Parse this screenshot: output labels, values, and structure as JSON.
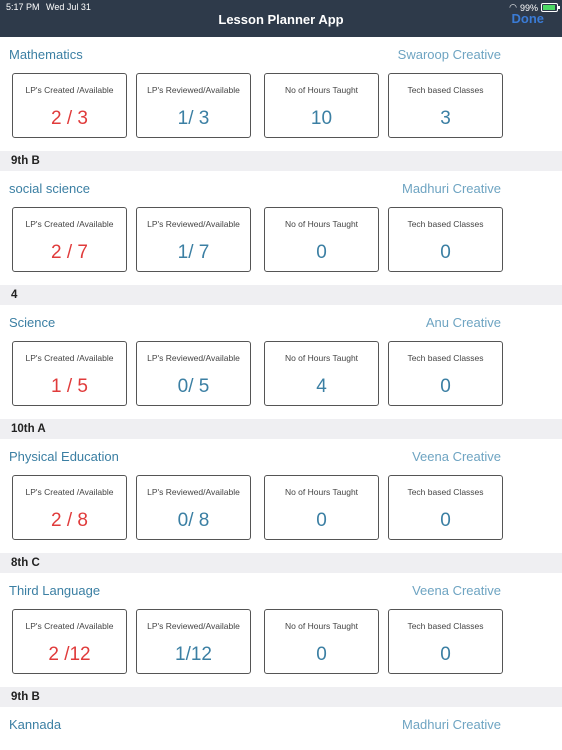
{
  "status": {
    "time": "5:17 PM",
    "date": "Wed Jul 31",
    "battery": "99%"
  },
  "nav": {
    "title": "Lesson Planner App",
    "done": "Done"
  },
  "labels": {
    "lp_created": "LP's Created /Available",
    "lp_reviewed": "LP's Reviewed/Available",
    "hours": "No of Hours Taught",
    "tech": "Tech based Classes"
  },
  "sections": [
    {
      "subject": "Mathematics",
      "teacher": "Swaroop Creative",
      "created": "2 / 3",
      "reviewed": "1/ 3",
      "hours": "10",
      "tech": "3",
      "class_after": "9th B"
    },
    {
      "subject": "social science",
      "teacher": "Madhuri Creative",
      "created": "2 / 7",
      "reviewed": "1/ 7",
      "hours": "0",
      "tech": "0",
      "class_after": "4"
    },
    {
      "subject": "Science",
      "teacher": "Anu Creative",
      "created": "1 / 5",
      "reviewed": "0/ 5",
      "hours": "4",
      "tech": "0",
      "class_after": "10th A"
    },
    {
      "subject": "Physical Education",
      "teacher": "Veena Creative",
      "created": "2 / 8",
      "reviewed": "0/ 8",
      "hours": "0",
      "tech": "0",
      "class_after": "8th C"
    },
    {
      "subject": "Third Language",
      "teacher": "Veena Creative",
      "created": "2 /12",
      "reviewed": "1/12",
      "hours": "0",
      "tech": "0",
      "class_after": "9th B"
    },
    {
      "subject": "Kannada",
      "teacher": "Madhuri Creative"
    }
  ]
}
